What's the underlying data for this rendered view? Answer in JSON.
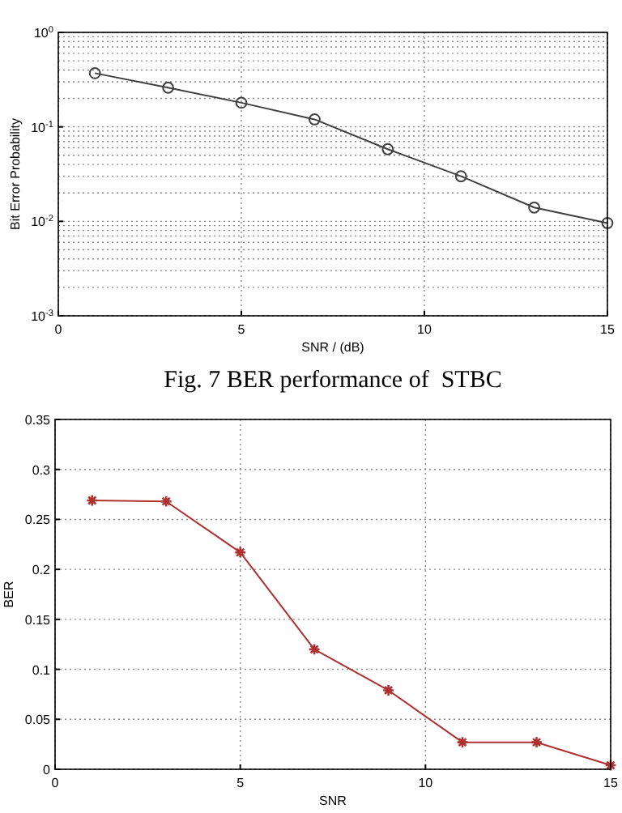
{
  "chart_data": [
    {
      "type": "line",
      "xlabel": "SNR / (dB)",
      "ylabel": "Bit Error Probability",
      "annotations": [
        "Fig. 7 BER performance of  STBC"
      ],
      "x": [
        1,
        3,
        5,
        7,
        9,
        11,
        13,
        15
      ],
      "log": true,
      "xlim": [
        0,
        15
      ],
      "xticks": [
        0,
        5,
        10,
        15
      ],
      "ylim": [
        0.001,
        1
      ],
      "yticks": [
        {
          "value": 0.001,
          "label": "10$^{-3}$"
        },
        {
          "value": 0.01,
          "label": "10$^{-2}$"
        },
        {
          "value": 0.1,
          "label": "10$^{-1}$"
        },
        {
          "value": 1,
          "label": "10$^{0}$"
        }
      ],
      "grid": true,
      "marker": "circle",
      "line_style": "solid",
      "series": [
        {
          "color": "#404040",
          "values": [
            0.37,
            0.26,
            0.18,
            0.12,
            0.058,
            0.03,
            0.014,
            0.0096
          ]
        }
      ]
    },
    {
      "type": "line",
      "xlabel": "SNR",
      "ylabel": "BER",
      "x": [
        1,
        3,
        5,
        7,
        9,
        11,
        13,
        15
      ],
      "xlim": [
        0,
        15
      ],
      "xticks": [
        0,
        5,
        10,
        15
      ],
      "ylim": [
        0,
        0.35
      ],
      "yticks": [
        0,
        0.05,
        0.1,
        0.15,
        0.2,
        0.25,
        0.3,
        0.35
      ],
      "grid": true,
      "marker": "cross",
      "line_style": "solid",
      "series": [
        {
          "color": "#b03030",
          "values": [
            0.269,
            0.268,
            0.217,
            0.12,
            0.079,
            0.027,
            0.027,
            0.004
          ]
        }
      ]
    }
  ]
}
